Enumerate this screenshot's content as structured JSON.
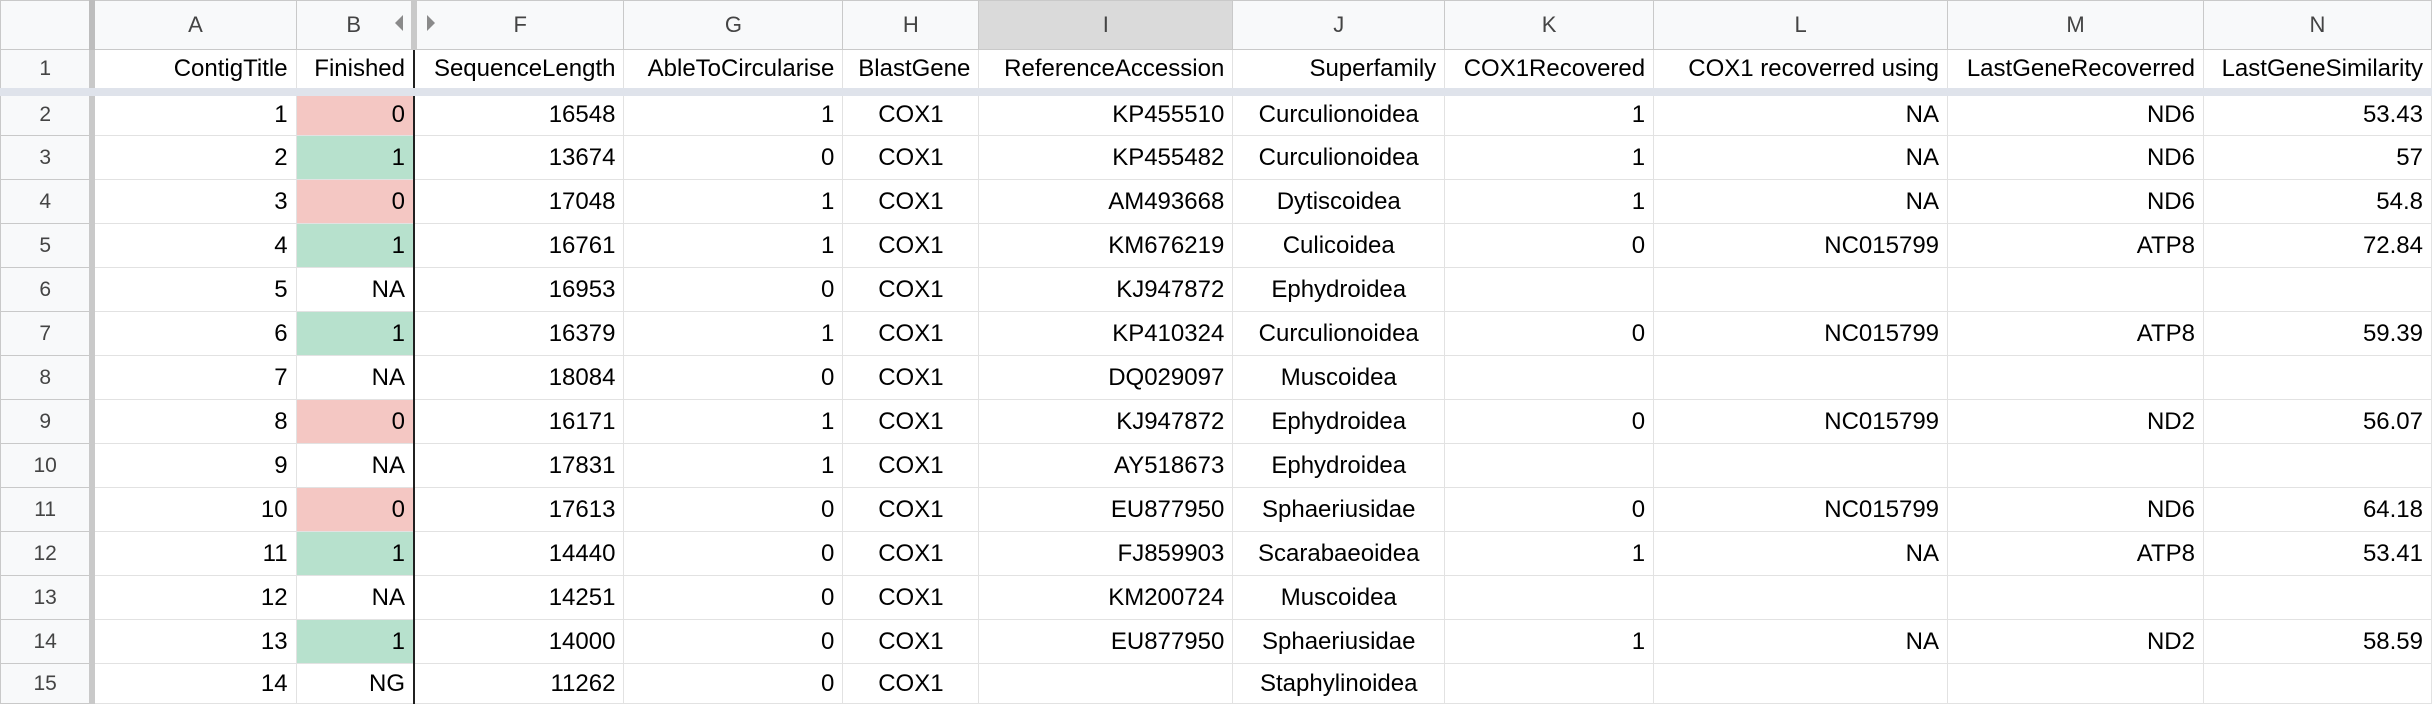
{
  "columns": [
    "A",
    "B",
    "F",
    "G",
    "H",
    "I",
    "J",
    "K",
    "L",
    "M",
    "N"
  ],
  "selected_column": "I",
  "colors": {
    "red": "#f4c7c3",
    "green": "#b7e1cd"
  },
  "header_row": {
    "number": "1",
    "cells": [
      "ContigTitle",
      "Finished",
      "SequenceLength",
      "AbleToCircularise",
      "BlastGene",
      "ReferenceAccession",
      "Superfamily",
      "COX1Recovered",
      "COX1 recoverred using",
      "LastGeneRecoverred",
      "LastGeneSimilarity"
    ]
  },
  "rows": [
    {
      "number": "2",
      "cells": [
        "1",
        "0",
        "16548",
        "1",
        "COX1",
        "KP455510",
        "Curculionoidea",
        "1",
        "NA",
        "ND6",
        "53.43"
      ],
      "finished_color": "red"
    },
    {
      "number": "3",
      "cells": [
        "2",
        "1",
        "13674",
        "0",
        "COX1",
        "KP455482",
        "Curculionoidea",
        "1",
        "NA",
        "ND6",
        "57"
      ],
      "finished_color": "green"
    },
    {
      "number": "4",
      "cells": [
        "3",
        "0",
        "17048",
        "1",
        "COX1",
        "AM493668",
        "Dytiscoidea",
        "1",
        "NA",
        "ND6",
        "54.8"
      ],
      "finished_color": "red"
    },
    {
      "number": "5",
      "cells": [
        "4",
        "1",
        "16761",
        "1",
        "COX1",
        "KM676219",
        "Culicoidea",
        "0",
        "NC015799",
        "ATP8",
        "72.84"
      ],
      "finished_color": "green"
    },
    {
      "number": "6",
      "cells": [
        "5",
        "NA",
        "16953",
        "0",
        "COX1",
        "KJ947872",
        "Ephydroidea",
        "",
        "",
        "",
        ""
      ],
      "finished_color": "none"
    },
    {
      "number": "7",
      "cells": [
        "6",
        "1",
        "16379",
        "1",
        "COX1",
        "KP410324",
        "Curculionoidea",
        "0",
        "NC015799",
        "ATP8",
        "59.39"
      ],
      "finished_color": "green"
    },
    {
      "number": "8",
      "cells": [
        "7",
        "NA",
        "18084",
        "0",
        "COX1",
        "DQ029097",
        "Muscoidea",
        "",
        "",
        "",
        ""
      ],
      "finished_color": "none"
    },
    {
      "number": "9",
      "cells": [
        "8",
        "0",
        "16171",
        "1",
        "COX1",
        "KJ947872",
        "Ephydroidea",
        "0",
        "NC015799",
        "ND2",
        "56.07"
      ],
      "finished_color": "red"
    },
    {
      "number": "10",
      "cells": [
        "9",
        "NA",
        "17831",
        "1",
        "COX1",
        "AY518673",
        "Ephydroidea",
        "",
        "",
        "",
        ""
      ],
      "finished_color": "none"
    },
    {
      "number": "11",
      "cells": [
        "10",
        "0",
        "17613",
        "0",
        "COX1",
        "EU877950",
        "Sphaeriusidae",
        "0",
        "NC015799",
        "ND6",
        "64.18"
      ],
      "finished_color": "red"
    },
    {
      "number": "12",
      "cells": [
        "11",
        "1",
        "14440",
        "0",
        "COX1",
        "FJ859903",
        "Scarabaeoidea",
        "1",
        "NA",
        "ATP8",
        "53.41"
      ],
      "finished_color": "green"
    },
    {
      "number": "13",
      "cells": [
        "12",
        "NA",
        "14251",
        "0",
        "COX1",
        "KM200724",
        "Muscoidea",
        "",
        "",
        "",
        ""
      ],
      "finished_color": "none"
    },
    {
      "number": "14",
      "cells": [
        "13",
        "1",
        "14000",
        "0",
        "COX1",
        "EU877950",
        "Sphaeriusidae",
        "1",
        "NA",
        "ND2",
        "58.59"
      ],
      "finished_color": "green"
    },
    {
      "number": "15",
      "cells": [
        "14",
        "NG",
        "11262",
        "0",
        "COX1",
        "",
        "Staphylinoidea",
        "",
        "",
        "",
        ""
      ],
      "finished_color": "none"
    }
  ]
}
